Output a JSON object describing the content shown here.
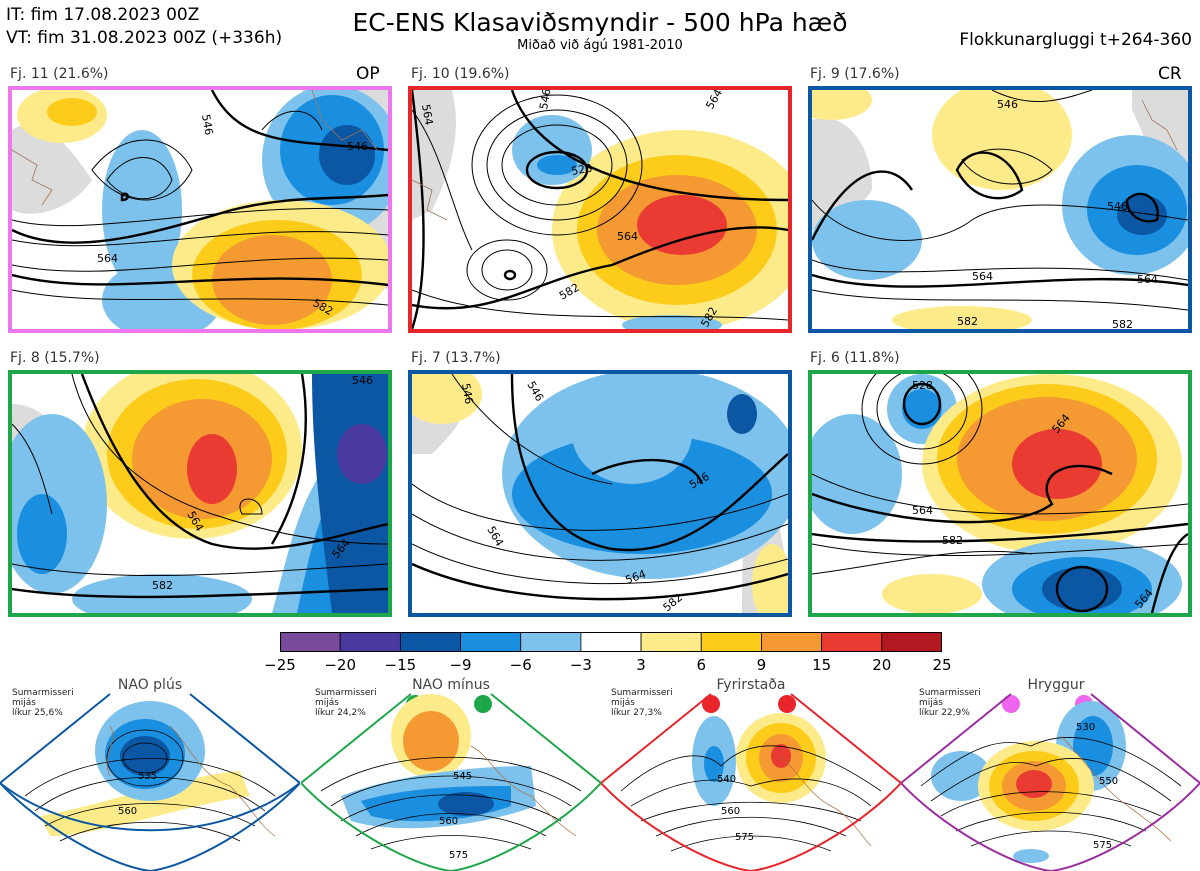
{
  "header": {
    "it_line": "IT: fim 17.08.2023 00Z",
    "vt_line": "VT: fim 31.08.2023 00Z  (+336h)",
    "title": "EC-ENS Klasaviðsmyndir - 500 hPa hæð",
    "subtitle": "Miðað við ágú 1981-2010",
    "window": "Flokkunargluggi t+264-360"
  },
  "clusters": [
    {
      "label": "Fj. 11 (21.6%)",
      "tag": "OP",
      "border": "#ee77ee",
      "contours": [
        "546",
        "546",
        "564",
        "582"
      ]
    },
    {
      "label": "Fj. 10 (19.6%)",
      "tag": "",
      "border": "#e8252a",
      "contours": [
        "564",
        "546",
        "528",
        "564",
        "564",
        "582",
        "582"
      ]
    },
    {
      "label": "Fj. 9 (17.6%)",
      "tag": "CR",
      "border": "#0b57a3",
      "contours": [
        "546",
        "564",
        "546",
        "564",
        "582",
        "582"
      ]
    },
    {
      "label": "Fj. 8 (15.7%)",
      "tag": "",
      "border": "#1ea64a",
      "contours": [
        "546",
        "564",
        "564",
        "582"
      ]
    },
    {
      "label": "Fj. 7 (13.7%)",
      "tag": "",
      "border": "#0b57a3",
      "contours": [
        "546",
        "546",
        "546",
        "564",
        "564",
        "582"
      ]
    },
    {
      "label": "Fj. 6 (11.8%)",
      "tag": "",
      "border": "#1ea64a",
      "contours": [
        "528",
        "564",
        "564",
        "582",
        "564"
      ]
    }
  ],
  "colorbar": {
    "ticks": [
      "−25",
      "−20",
      "−15",
      "−9",
      "−6",
      "−3",
      "3",
      "6",
      "9",
      "15",
      "20",
      "25"
    ],
    "colors": [
      "#7a4a9a",
      "#4a3aa0",
      "#0b57a3",
      "#1a8fe0",
      "#7dc2ec",
      "#ffffff",
      "#fdeb8a",
      "#fdcc1a",
      "#f59a32",
      "#ea3b32",
      "#b3171f"
    ]
  },
  "regimes": [
    {
      "name": "NAO plús",
      "text1": "Sumarmisseri",
      "text2": "mijás",
      "text3": "líkur 25,6%",
      "color": "#0b57a3",
      "contours": [
        "535",
        "560"
      ]
    },
    {
      "name": "NAO mínus",
      "text1": "Sumarmisseri",
      "text2": "mijás",
      "text3": "líkur 24,2%",
      "color": "#1ea64a",
      "contours": [
        "545",
        "560",
        "575"
      ]
    },
    {
      "name": "Fyrirstaða",
      "text1": "Sumarmisseri",
      "text2": "mijás",
      "text3": "líkur 27,3%",
      "color": "#e8252a",
      "contours": [
        "540",
        "560",
        "575"
      ]
    },
    {
      "name": "Hryggur",
      "text1": "Sumarmisseri",
      "text2": "mijás",
      "text3": "líkur 22,9%",
      "color": "#ee66ee",
      "contours": [
        "530",
        "550",
        "575"
      ]
    }
  ]
}
